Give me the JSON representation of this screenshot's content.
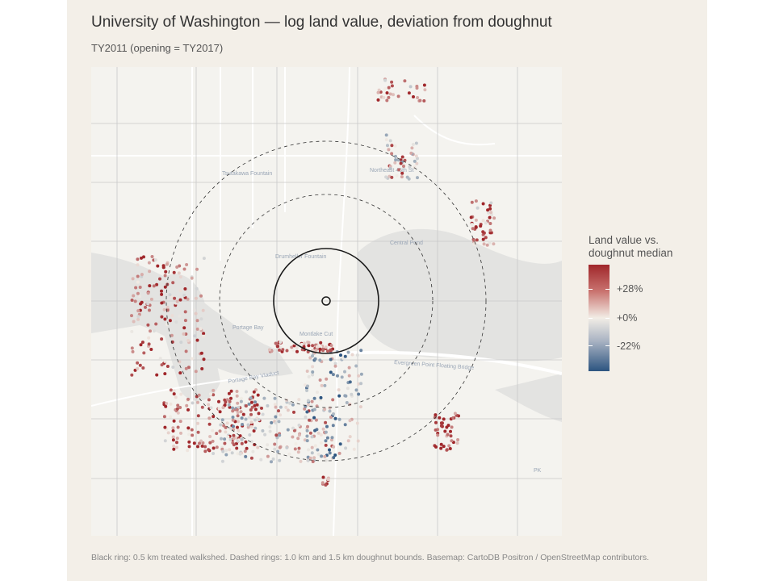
{
  "title": "University of Washington — log land value, deviation from doughnut",
  "subtitle": "TY2011  (opening = TY2017)",
  "legend": {
    "title_line1": "Land value vs.",
    "title_line2": "doughnut median",
    "ticks": [
      "+28%",
      "+0%",
      "-22%"
    ],
    "colors": {
      "high": "#a0272b",
      "mid": "#f2ede6",
      "low": "#2c5480"
    }
  },
  "caption": "Black ring: 0.5 km treated walkshed.  Dashed rings: 1.0 km and 1.5 km doughnut bounds.  Basemap: CartoDB Positron / OpenStreetMap contributors.",
  "map_labels": {
    "tsutakawa": "Tsutakawa Fountain",
    "drumheller": "Drumheller Fountain",
    "central_pond": "Central Pond",
    "portage_bay": "Portage Bay",
    "montlake_cut": "Montlake Cut",
    "bridge": "Evergreen Point Floating Bridge",
    "viaduct": "Portage Bay Viaduct",
    "ne45": "Northeast 45th St",
    "pk": "PK"
  }
}
